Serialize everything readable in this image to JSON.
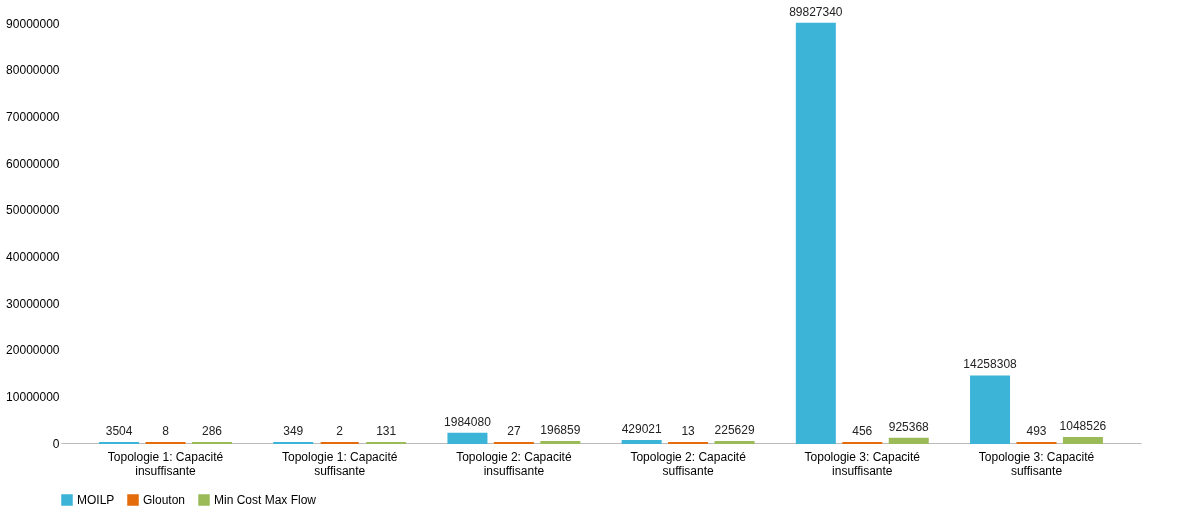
{
  "chart_data": {
    "type": "bar",
    "categories": [
      "Topologie 1: Capacité insuffisante",
      "Topologie 1: Capacité suffisante",
      "Topologie 2: Capacité insuffisante",
      "Topologie 2: Capacité suffisante",
      "Topologie 3: Capacité insuffisante",
      "Topologie 3: Capacité suffisante"
    ],
    "series": [
      {
        "name": "MOILP",
        "color": "#3bb4d8",
        "values": [
          3504,
          349,
          1984080,
          429021,
          89827340,
          14258308
        ]
      },
      {
        "name": "Glouton",
        "color": "#e46c0a",
        "values": [
          8,
          2,
          27,
          13,
          456,
          493
        ]
      },
      {
        "name": "Min Cost Max Flow",
        "color": "#9bbb59",
        "values": [
          286,
          131,
          196859,
          225629,
          925368,
          1048526
        ]
      }
    ],
    "ylim": [
      0,
      90000000
    ],
    "yticks": [
      0,
      10000000,
      20000000,
      30000000,
      40000000,
      50000000,
      60000000,
      70000000,
      80000000,
      90000000
    ],
    "data_labels": true,
    "grid": false,
    "legend": "bottom"
  }
}
